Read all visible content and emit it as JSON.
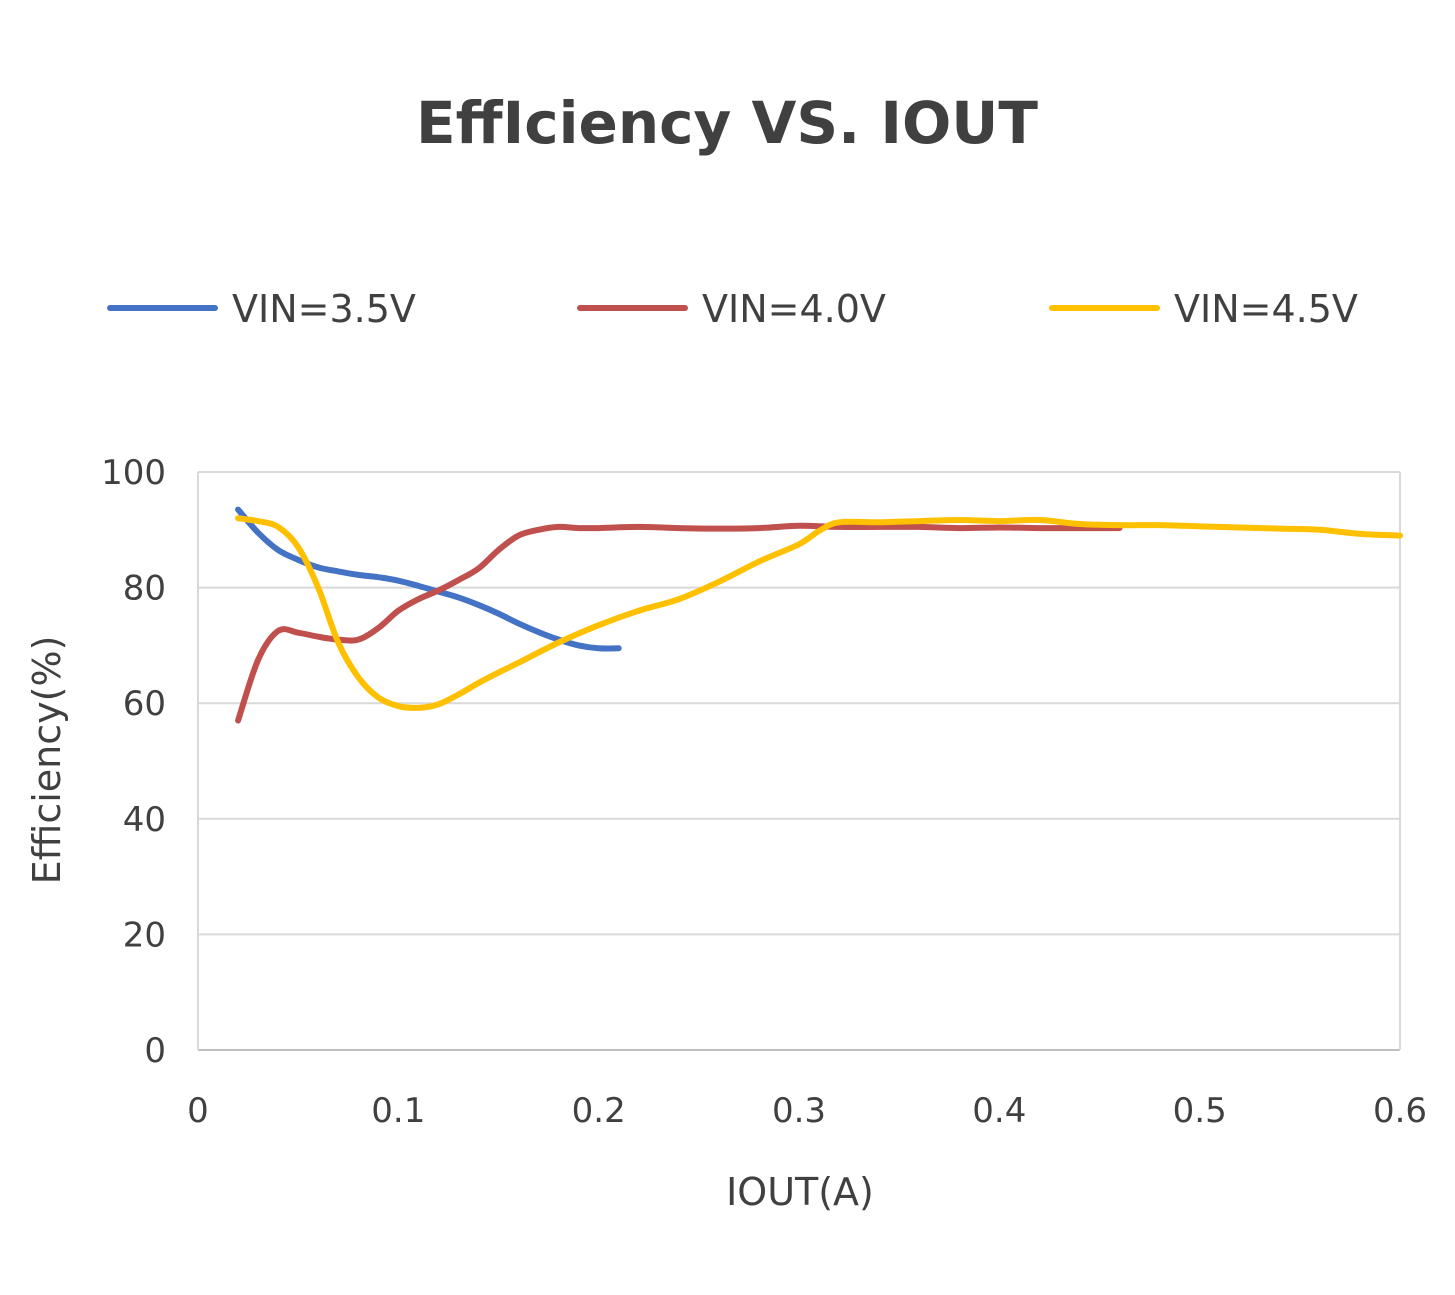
{
  "chart_data": {
    "type": "line",
    "title": "EffIciency VS. IOUT",
    "xlabel": "IOUT(A)",
    "ylabel": "Efficiency(%)",
    "xlim": [
      0,
      0.6
    ],
    "ylim": [
      0,
      100
    ],
    "xticks": [
      0,
      0.1,
      0.2,
      0.3,
      0.4,
      0.5,
      0.6
    ],
    "yticks": [
      0,
      20,
      40,
      60,
      80,
      100
    ],
    "x_tick_labels": [
      "0",
      "0.1",
      "0.2",
      "0.3",
      "0.4",
      "0.5",
      "0.6"
    ],
    "y_tick_labels": [
      "0",
      "20",
      "40",
      "60",
      "80",
      "100"
    ],
    "grid": "horizontal",
    "legend": "top",
    "series": [
      {
        "name": "VIN=3.5V",
        "color": "#4472C4",
        "x": [
          0.02,
          0.03,
          0.04,
          0.05,
          0.06,
          0.07,
          0.08,
          0.09,
          0.1,
          0.11,
          0.12,
          0.13,
          0.14,
          0.15,
          0.16,
          0.17,
          0.18,
          0.19,
          0.2,
          0.21
        ],
        "y": [
          93.5,
          89.5,
          86.5,
          84.8,
          83.5,
          82.8,
          82.2,
          81.8,
          81.2,
          80.3,
          79.3,
          78.3,
          77.0,
          75.5,
          73.8,
          72.3,
          71.0,
          70.0,
          69.5,
          69.5
        ]
      },
      {
        "name": "VIN=4.0V",
        "color": "#C0504D",
        "x": [
          0.02,
          0.03,
          0.04,
          0.05,
          0.06,
          0.07,
          0.08,
          0.09,
          0.1,
          0.11,
          0.12,
          0.13,
          0.14,
          0.15,
          0.16,
          0.17,
          0.18,
          0.19,
          0.2,
          0.22,
          0.24,
          0.26,
          0.28,
          0.3,
          0.32,
          0.34,
          0.36,
          0.38,
          0.4,
          0.42,
          0.44,
          0.46
        ],
        "y": [
          57.0,
          67.5,
          72.5,
          72.2,
          71.5,
          71.0,
          71.0,
          73.0,
          76.0,
          78.0,
          79.5,
          81.3,
          83.3,
          86.5,
          89.0,
          90.0,
          90.5,
          90.3,
          90.3,
          90.5,
          90.3,
          90.2,
          90.3,
          90.7,
          90.5,
          90.5,
          90.5,
          90.3,
          90.4,
          90.3,
          90.3,
          90.3
        ]
      },
      {
        "name": "VIN=4.5V",
        "color": "#FFC000",
        "x": [
          0.02,
          0.03,
          0.04,
          0.05,
          0.06,
          0.07,
          0.08,
          0.09,
          0.1,
          0.11,
          0.12,
          0.13,
          0.14,
          0.15,
          0.16,
          0.18,
          0.2,
          0.22,
          0.24,
          0.26,
          0.28,
          0.3,
          0.31,
          0.32,
          0.34,
          0.36,
          0.38,
          0.4,
          0.42,
          0.44,
          0.46,
          0.48,
          0.5,
          0.52,
          0.54,
          0.56,
          0.58,
          0.6
        ],
        "y": [
          92.0,
          91.5,
          90.5,
          87.0,
          80.0,
          70.5,
          64.5,
          61.0,
          59.5,
          59.2,
          59.8,
          61.5,
          63.5,
          65.3,
          67.0,
          70.5,
          73.5,
          76.0,
          78.0,
          81.0,
          84.5,
          87.5,
          89.8,
          91.3,
          91.3,
          91.5,
          91.7,
          91.5,
          91.7,
          91.0,
          90.8,
          90.8,
          90.6,
          90.4,
          90.2,
          90.0,
          89.3,
          89.0
        ]
      }
    ]
  }
}
